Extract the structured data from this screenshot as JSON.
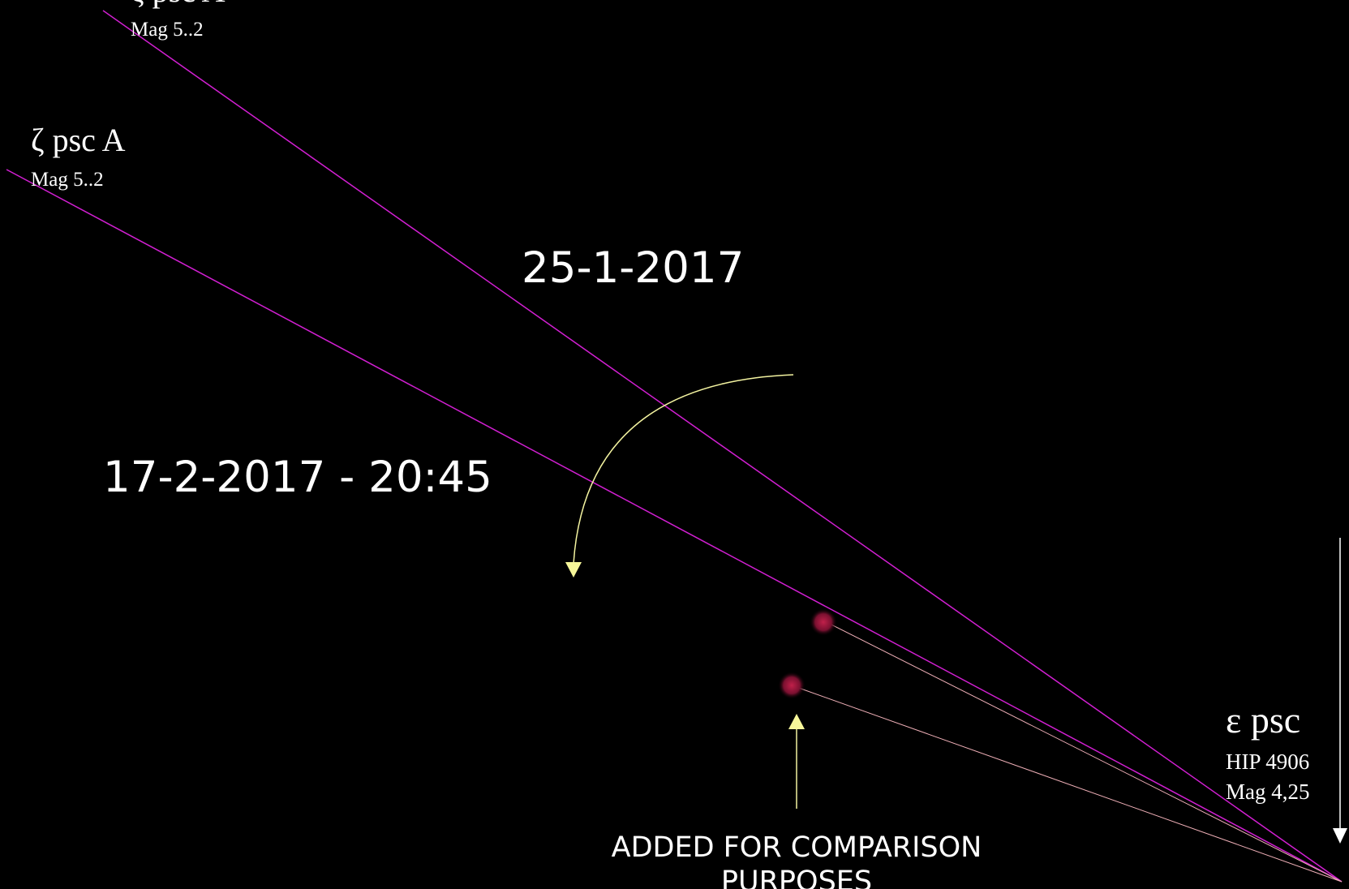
{
  "stars": [
    {
      "name": "ζ psc A",
      "detail": [
        "Mag 5..2"
      ]
    },
    {
      "name": "ζ psc A",
      "detail": [
        "Mag 5..2"
      ]
    },
    {
      "name": "ε psc",
      "detail": [
        "HIP 4906",
        "Mag 4,25"
      ]
    }
  ],
  "dates": [
    "25-1-2017",
    "17-2-2017 - 20:45"
  ],
  "annotation": [
    "ADDED FOR COMPARISON",
    "PURPOSES"
  ]
}
